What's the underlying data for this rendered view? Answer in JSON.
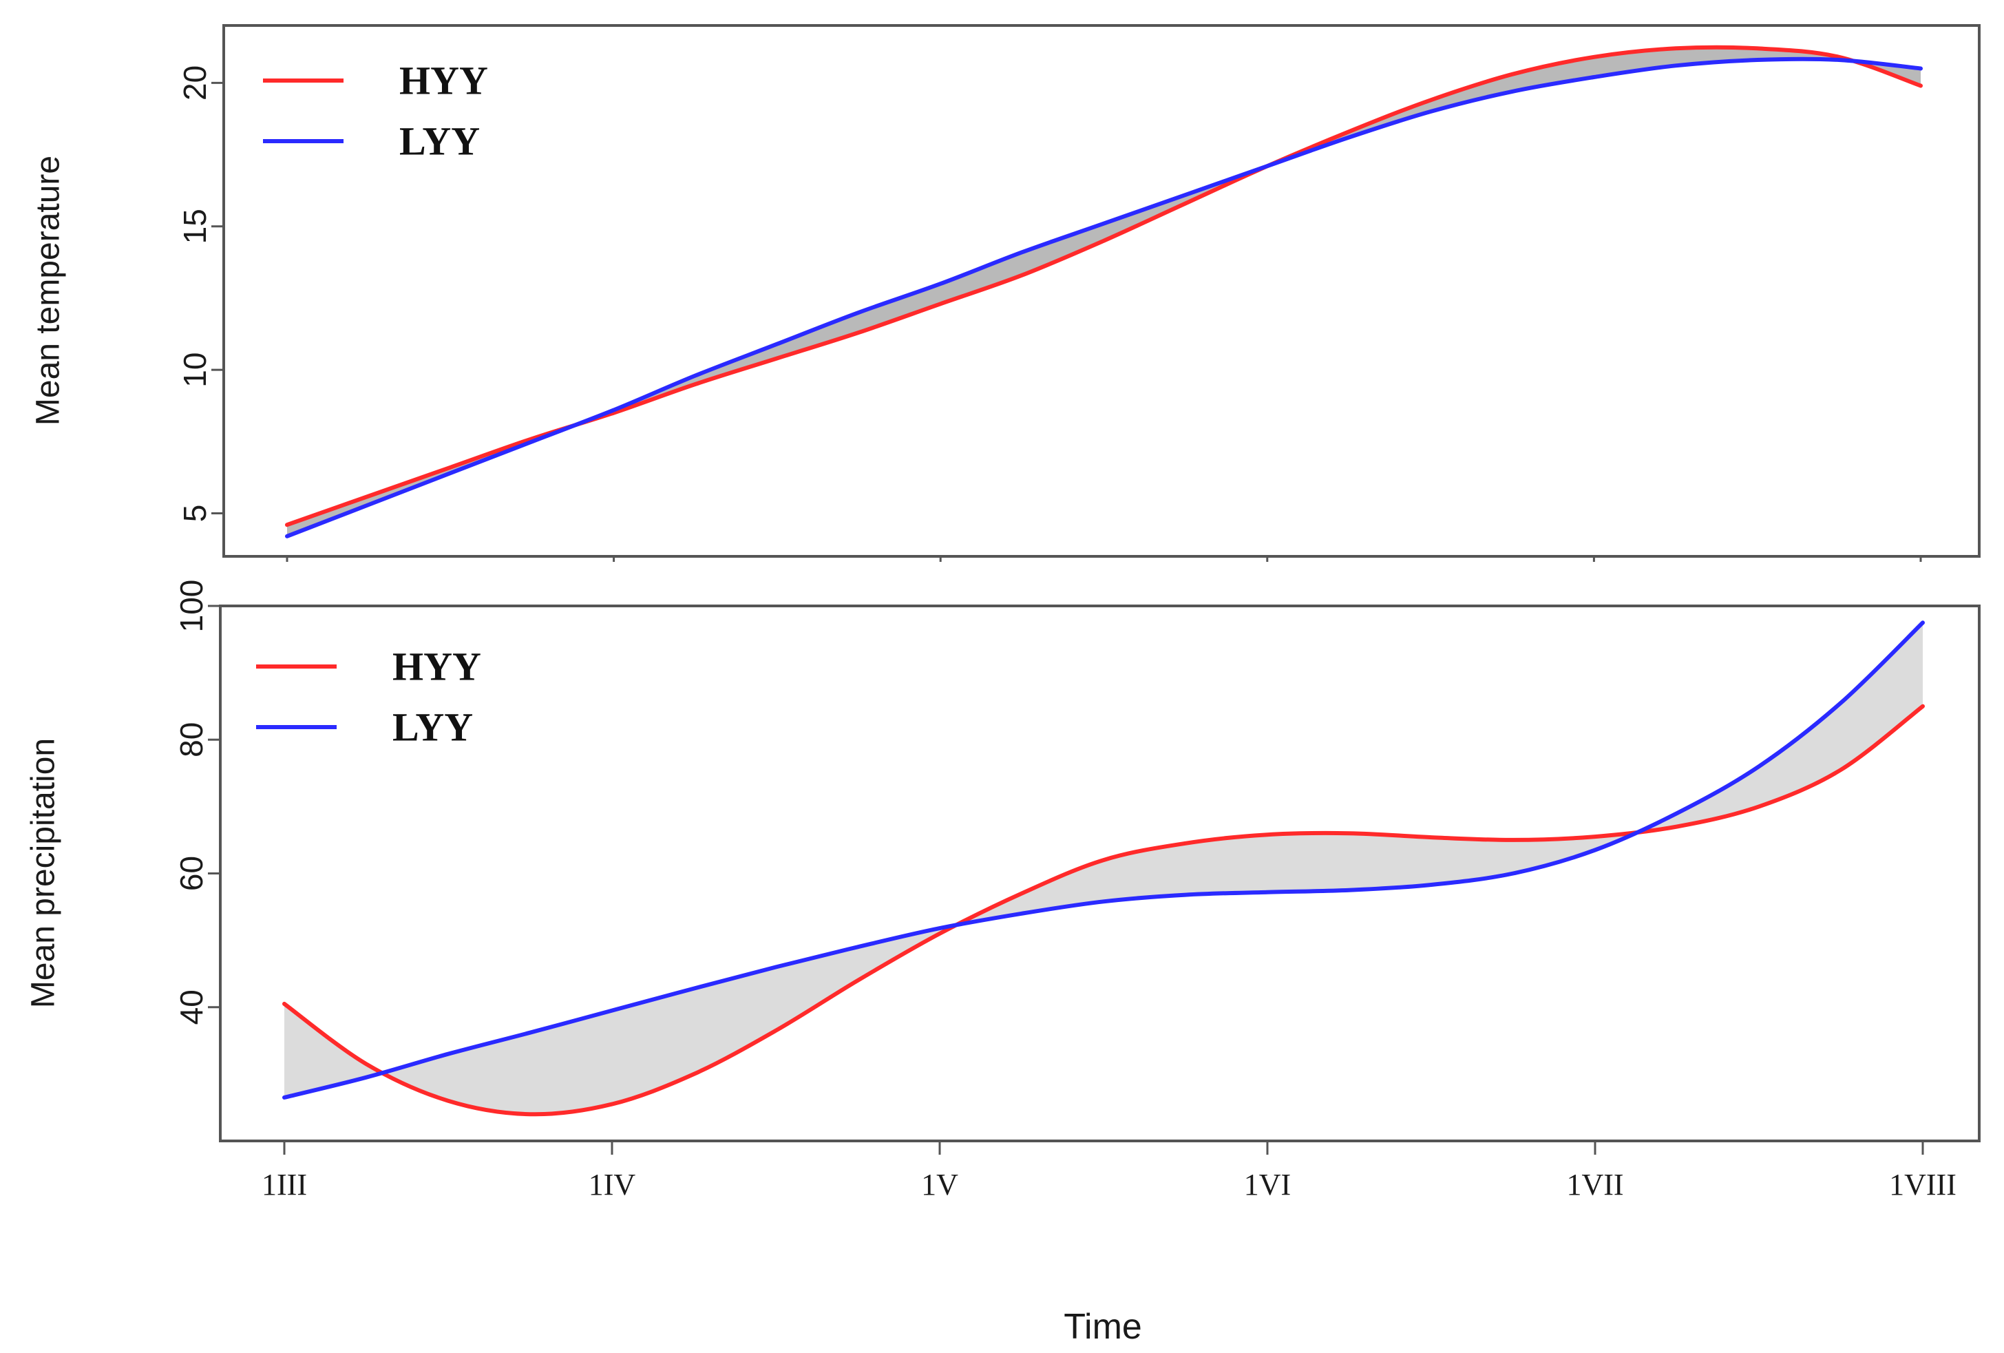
{
  "chart_data": [
    {
      "type": "line",
      "panel": "top",
      "title": "",
      "xlabel": "",
      "ylabel": "Mean temperature",
      "xlim": [
        0,
        5
      ],
      "ylim": [
        3.5,
        22
      ],
      "yticks": [
        5,
        10,
        15,
        20
      ],
      "x_ticks": [
        0,
        1,
        2,
        3,
        4,
        5
      ],
      "x_tick_labels": [],
      "grid": false,
      "legend_position": "top-left",
      "fill_between": true,
      "series": [
        {
          "name": "HYY",
          "color": "#ff2a2a",
          "x": [
            0,
            0.25,
            0.5,
            0.75,
            1,
            1.25,
            1.5,
            1.75,
            2,
            2.25,
            2.5,
            2.75,
            3,
            3.25,
            3.5,
            3.75,
            4,
            4.25,
            4.5,
            4.75,
            5
          ],
          "values": [
            4.6,
            5.6,
            6.6,
            7.6,
            8.5,
            9.5,
            10.4,
            11.3,
            12.3,
            13.3,
            14.5,
            15.8,
            17.1,
            18.3,
            19.4,
            20.3,
            20.9,
            21.2,
            21.2,
            20.9,
            19.9
          ]
        },
        {
          "name": "LYY",
          "color": "#2a2aff",
          "x": [
            0,
            0.25,
            0.5,
            0.75,
            1,
            1.25,
            1.5,
            1.75,
            2,
            2.25,
            2.5,
            2.75,
            3,
            3.25,
            3.5,
            3.75,
            4,
            4.25,
            4.5,
            4.75,
            5
          ],
          "values": [
            4.2,
            5.3,
            6.4,
            7.5,
            8.6,
            9.8,
            10.9,
            12.0,
            13.0,
            14.1,
            15.1,
            16.1,
            17.1,
            18.1,
            19.0,
            19.7,
            20.2,
            20.6,
            20.8,
            20.8,
            20.5
          ]
        }
      ]
    },
    {
      "type": "line",
      "panel": "bottom",
      "title": "",
      "xlabel": "Time",
      "ylabel": "Mean precipitation",
      "xlim": [
        0,
        5
      ],
      "ylim": [
        20,
        100
      ],
      "yticks": [
        40,
        60,
        80,
        100
      ],
      "x_ticks": [
        0,
        1,
        2,
        3,
        4,
        5
      ],
      "x_tick_labels": [
        "1III",
        "1IV",
        "1V",
        "1VI",
        "1VII",
        "1VIII"
      ],
      "grid": false,
      "legend_position": "top-left",
      "fill_between": true,
      "series": [
        {
          "name": "HYY",
          "color": "#ff2a2a",
          "x": [
            0,
            0.25,
            0.5,
            0.75,
            1,
            1.25,
            1.5,
            1.75,
            2,
            2.25,
            2.5,
            2.75,
            3,
            3.25,
            3.5,
            3.75,
            4,
            4.25,
            4.5,
            4.75,
            5
          ],
          "values": [
            40.5,
            31.5,
            26.0,
            24.0,
            25.5,
            30.0,
            36.5,
            44.0,
            51.0,
            57.0,
            62.0,
            64.5,
            65.8,
            66.0,
            65.4,
            65.0,
            65.5,
            67.0,
            70.0,
            75.5,
            85.0
          ]
        },
        {
          "name": "LYY",
          "color": "#2a2aff",
          "x": [
            0,
            0.25,
            0.5,
            0.75,
            1,
            1.25,
            1.5,
            1.75,
            2,
            2.25,
            2.5,
            2.75,
            3,
            3.25,
            3.5,
            3.75,
            4,
            4.25,
            4.5,
            4.75,
            5
          ],
          "values": [
            26.5,
            29.5,
            33.0,
            36.2,
            39.5,
            42.8,
            46.0,
            49.0,
            51.8,
            54.0,
            55.8,
            56.8,
            57.2,
            57.5,
            58.3,
            60.0,
            63.5,
            69.0,
            76.0,
            85.5,
            97.5
          ]
        }
      ]
    }
  ]
}
